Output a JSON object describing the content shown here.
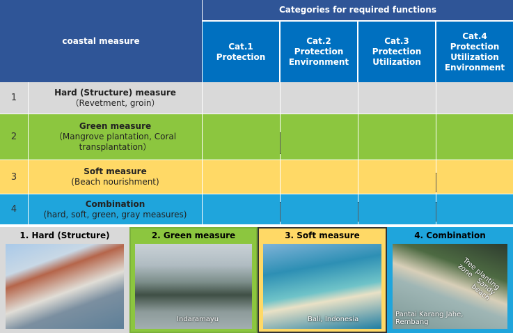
{
  "header": {
    "left": "coastal measure",
    "top": "Categories for required functions",
    "categories": [
      [
        "Cat.1",
        "Protection"
      ],
      [
        "Cat.2",
        "Protection",
        "Environment"
      ],
      [
        "Cat.3",
        "Protection",
        "Utilization"
      ],
      [
        "Cat.4",
        "Protection",
        "Utilization",
        "Environment"
      ]
    ]
  },
  "table": {
    "rows": [
      {
        "number": "1",
        "name": "Hard (Structure) measure",
        "detail": "（Revetment, groin）"
      },
      {
        "number": "2",
        "name": "Green measure",
        "detail": "（Mangrove plantation, Coral transplantation）"
      },
      {
        "number": "3",
        "name": "Soft measure",
        "detail": "(Beach nourishment)"
      },
      {
        "number": "4",
        "name": "Combination",
        "detail": "(hard, soft, green, gray measures)"
      }
    ]
  },
  "photos": [
    {
      "title": "1. Hard (Structure)",
      "captions": []
    },
    {
      "title": "2. Green measure",
      "captions": [
        "Indaramayu"
      ]
    },
    {
      "title": "3. Soft measure",
      "captions": [
        "Bali, Indonesia"
      ]
    },
    {
      "title": "4. Combination",
      "captions": [
        "Pantai Karang Jahe, Rembang",
        "Tree planting zone",
        "Sandy beach"
      ]
    }
  ]
}
